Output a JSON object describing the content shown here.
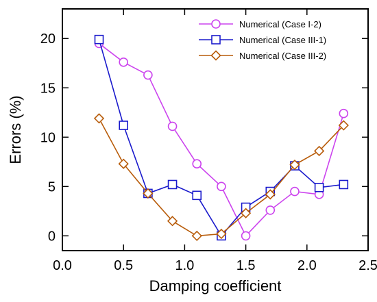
{
  "chart_data": {
    "type": "line",
    "title": "",
    "xlabel": "Damping coefficient",
    "ylabel": "Errors (%)",
    "xlim": [
      0.0,
      2.5
    ],
    "ylim": [
      -1.5,
      23
    ],
    "xticks": [
      0.0,
      0.5,
      1.0,
      1.5,
      2.0,
      2.5
    ],
    "xtick_labels": [
      "0.0",
      "0.5",
      "1.0",
      "1.5",
      "2.0",
      "2.5"
    ],
    "yticks": [
      0,
      5,
      10,
      15,
      20
    ],
    "ytick_labels": [
      "0",
      "5",
      "10",
      "15",
      "20"
    ],
    "grid": false,
    "legend_position": "top-right",
    "series": [
      {
        "name": "Numerical (Case I-2)",
        "color": "#cc44ee",
        "marker": "circle",
        "x": [
          0.3,
          0.5,
          0.7,
          0.9,
          1.1,
          1.3,
          1.5,
          1.7,
          1.9,
          2.1,
          2.3
        ],
        "y": [
          19.5,
          17.6,
          16.3,
          11.1,
          7.3,
          5.0,
          0.0,
          2.6,
          4.5,
          4.2,
          12.4
        ]
      },
      {
        "name": "Numerical (Case III-1)",
        "color": "#1a1acc",
        "marker": "square",
        "x": [
          0.3,
          0.5,
          0.7,
          0.9,
          1.1,
          1.3,
          1.5,
          1.7,
          1.9,
          2.1,
          2.3
        ],
        "y": [
          19.9,
          11.2,
          4.3,
          5.2,
          4.1,
          0.0,
          2.9,
          4.5,
          7.1,
          4.9,
          5.2
        ]
      },
      {
        "name": "Numerical (Case III-2)",
        "color": "#b85c0a",
        "marker": "diamond",
        "x": [
          0.3,
          0.5,
          0.7,
          0.9,
          1.1,
          1.3,
          1.5,
          1.7,
          1.9,
          2.1,
          2.3
        ],
        "y": [
          11.9,
          7.3,
          4.3,
          1.5,
          0.0,
          0.2,
          2.3,
          4.2,
          7.2,
          8.6,
          11.2
        ]
      }
    ]
  }
}
